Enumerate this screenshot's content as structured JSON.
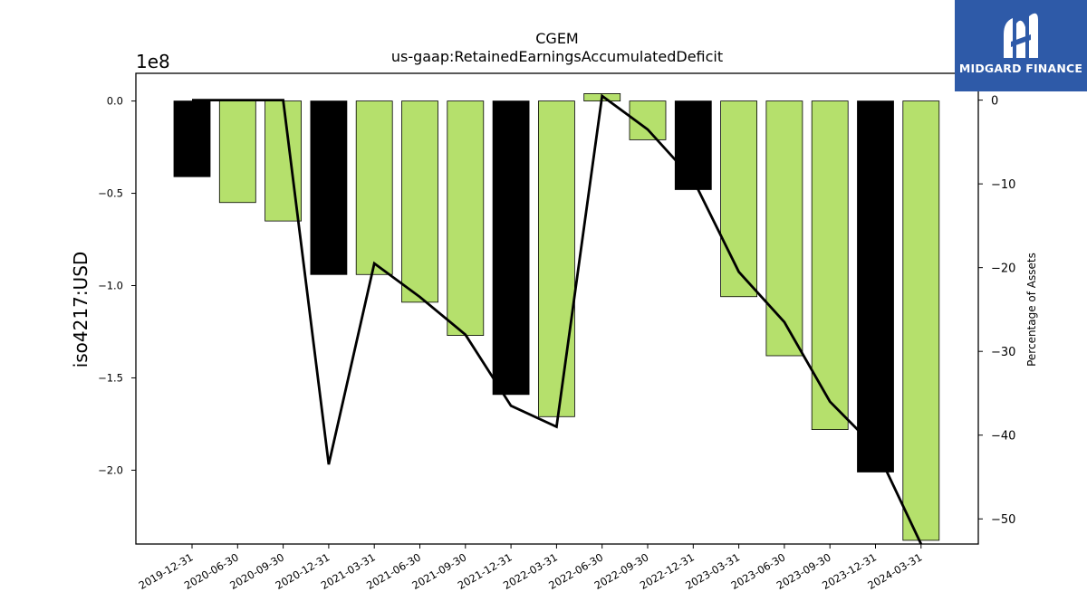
{
  "chart_data": {
    "type": "bar",
    "title": "CGEM",
    "subtitle": "us-gaap:RetainedEarningsAccumulatedDeficit",
    "ylabel": "iso4217:USD",
    "y2label": "Percentage of Assets",
    "y_offset_label": "1e8",
    "categories": [
      "2019-12-31",
      "2020-06-30",
      "2020-09-30",
      "2020-12-31",
      "2021-03-31",
      "2021-06-30",
      "2021-09-30",
      "2021-12-31",
      "2022-03-31",
      "2022-06-30",
      "2022-09-30",
      "2022-12-31",
      "2023-03-31",
      "2023-06-30",
      "2023-09-30",
      "2023-12-31",
      "2024-03-31"
    ],
    "series": [
      {
        "type": "bar",
        "axis": "left",
        "values": [
          -41000000,
          -55000000,
          -65000000,
          -94000000,
          -94000000,
          -109000000,
          -127000000,
          -159000000,
          -171000000,
          4000000,
          -21000000,
          -48000000,
          -106000000,
          -138000000,
          -178000000,
          -201000000,
          -238000000
        ],
        "colors": [
          "#000000",
          "#b5e06c",
          "#b5e06c",
          "#000000",
          "#b5e06c",
          "#b5e06c",
          "#b5e06c",
          "#000000",
          "#b5e06c",
          "#b5e06c",
          "#b5e06c",
          "#000000",
          "#b5e06c",
          "#b5e06c",
          "#b5e06c",
          "#000000",
          "#b5e06c"
        ]
      },
      {
        "type": "line",
        "axis": "right",
        "color": "#000000",
        "values": [
          0,
          0,
          0,
          -43.5,
          -19.5,
          -23.5,
          -28,
          -36.5,
          -39,
          0.5,
          -3.5,
          -9.5,
          -20.5,
          -26.5,
          -36,
          -41.5,
          -53
        ]
      }
    ],
    "ylim": [
      -240000000,
      15000000
    ],
    "y_ticks": [
      0,
      -0.5,
      -1.0,
      -1.5,
      -2.0
    ],
    "y_tick_labels": [
      "0.0",
      "−0.5",
      "−1.0",
      "−1.5",
      "−2.0"
    ],
    "y2lim": [
      -53,
      3.2
    ],
    "y2_ticks": [
      0,
      -10,
      -20,
      -30,
      -40,
      -50
    ],
    "y2_tick_labels": [
      "0",
      "−10",
      "−20",
      "−30",
      "−40",
      "−50"
    ],
    "grid": false,
    "legend": "none"
  },
  "logo": {
    "text": "MIDGARD FINANCE",
    "icon": "midgard-logo-icon"
  }
}
